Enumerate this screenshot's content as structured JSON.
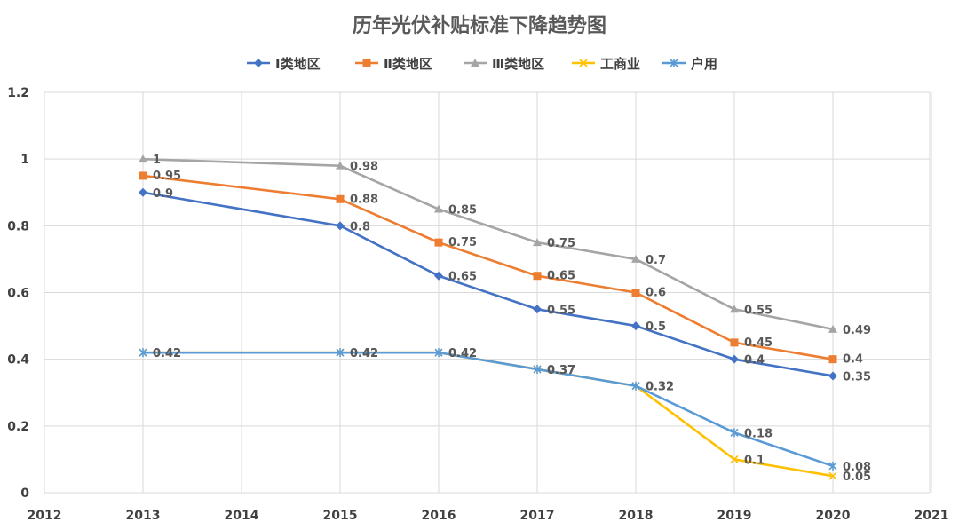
{
  "chart_data": {
    "type": "line",
    "title": "历年光伏补贴标准下降趋势图",
    "xlabel": "",
    "ylabel": "",
    "ylim": [
      0,
      1.2
    ],
    "yticks": [
      "0",
      "0.2",
      "0.4",
      "0.6",
      "0.8",
      "1",
      "1.2"
    ],
    "yticks_values": [
      0,
      0.2,
      0.4,
      0.6,
      0.8,
      1.0,
      1.2
    ],
    "xticks": [
      "2012",
      "2013",
      "2014",
      "2015",
      "2016",
      "2017",
      "2018",
      "2019",
      "2020",
      "2021"
    ],
    "grid": true,
    "legend_position": "top",
    "series": [
      {
        "name": "Ⅰ类地区",
        "color": "#4472c4",
        "marker": "diamond",
        "x": [
          "2013",
          "2015",
          "2016",
          "2017",
          "2018",
          "2019",
          "2020"
        ],
        "values": [
          0.9,
          0.8,
          0.65,
          0.55,
          0.5,
          0.4,
          0.35
        ],
        "labels": [
          "0.9",
          "0.8",
          "0.65",
          "0.55",
          "0.5",
          "0.4",
          "0.35"
        ]
      },
      {
        "name": "Ⅱ类地区",
        "color": "#ed7d31",
        "marker": "square",
        "x": [
          "2013",
          "2015",
          "2016",
          "2017",
          "2018",
          "2019",
          "2020"
        ],
        "values": [
          0.95,
          0.88,
          0.75,
          0.65,
          0.6,
          0.45,
          0.4
        ],
        "labels": [
          "0.95",
          "0.88",
          "0.75",
          "0.65",
          "0.6",
          "0.45",
          "0.4"
        ]
      },
      {
        "name": "Ⅲ类地区",
        "color": "#a5a5a5",
        "marker": "triangle",
        "x": [
          "2013",
          "2015",
          "2016",
          "2017",
          "2018",
          "2019",
          "2020"
        ],
        "values": [
          1.0,
          0.98,
          0.85,
          0.75,
          0.7,
          0.55,
          0.49
        ],
        "labels": [
          "1",
          "0.98",
          "0.85",
          "0.75",
          "0.7",
          "0.55",
          "0.49"
        ]
      },
      {
        "name": "工商业",
        "color": "#ffc000",
        "marker": "x",
        "x": [
          "2013",
          "2015",
          "2016",
          "2017",
          "2018",
          "2019",
          "2020"
        ],
        "values": [
          0.42,
          0.42,
          0.42,
          0.37,
          0.32,
          0.1,
          0.05
        ],
        "labels": [
          "0.42",
          "0.42",
          "0.42",
          "0.37",
          "0.32",
          "0.1",
          "0.05"
        ]
      },
      {
        "name": "户用",
        "color": "#5b9bd5",
        "marker": "star",
        "x": [
          "2013",
          "2015",
          "2016",
          "2017",
          "2018",
          "2019",
          "2020"
        ],
        "values": [
          0.42,
          0.42,
          0.42,
          0.37,
          0.32,
          0.18,
          0.08
        ],
        "labels": [
          "0.42",
          "0.42",
          "0.42",
          "0.37",
          "0.32",
          "0.18",
          "0.08"
        ]
      }
    ]
  }
}
